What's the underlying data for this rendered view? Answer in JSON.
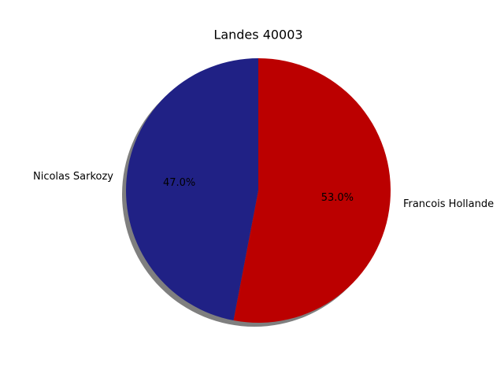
{
  "chart_data": {
    "type": "pie",
    "title": "Landes 40003",
    "slices": [
      {
        "label": "Francois Hollande",
        "value": 53.0,
        "pct_label": "53.0%",
        "color": "#bb0000"
      },
      {
        "label": "Nicolas Sarkozy",
        "value": 47.0,
        "pct_label": "47.0%",
        "color": "#202185"
      }
    ],
    "start_angle": 90,
    "direction": "clockwise",
    "shadow": true,
    "legend": false
  }
}
